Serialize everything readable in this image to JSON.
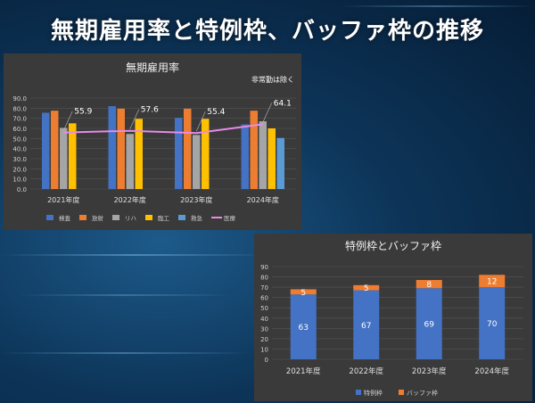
{
  "page_title": "無期雇用率と特例枠、バッファ枠の推移",
  "chart_data": [
    {
      "type": "bar",
      "title": "無期雇用率",
      "note": "非常勤は除く",
      "categories": [
        "2021年度",
        "2022年度",
        "2023年度",
        "2024年度"
      ],
      "ylim": [
        0,
        90
      ],
      "yticks": [
        "0.0",
        "10.0",
        "20.0",
        "30.0",
        "40.0",
        "50.0",
        "60.0",
        "70.0",
        "80.0",
        "90.0"
      ],
      "series": [
        {
          "name": "検査",
          "color": "#4472c4",
          "values": [
            75.5,
            82.0,
            70.5,
            64.0
          ]
        },
        {
          "name": "放射",
          "color": "#ed7d31",
          "values": [
            77.5,
            79.5,
            79.5,
            77.5
          ]
        },
        {
          "name": "リハ",
          "color": "#a5a5a5",
          "values": [
            60.5,
            54.5,
            53.5,
            67.0
          ]
        },
        {
          "name": "臨工",
          "color": "#ffc000",
          "values": [
            65.0,
            69.5,
            69.5,
            60.0
          ]
        },
        {
          "name": "救急",
          "color": "#5b9bd5",
          "values": [
            null,
            null,
            null,
            50.5
          ]
        }
      ],
      "line_series": {
        "name": "医療",
        "color": "#e88ae8",
        "values": [
          55.9,
          57.6,
          55.4,
          64.1
        ],
        "labels": [
          "55.9",
          "57.6",
          "55.4",
          "64.1"
        ]
      }
    },
    {
      "type": "bar",
      "stacked": true,
      "title": "特例枠とバッファ枠",
      "categories": [
        "2021年度",
        "2022年度",
        "2023年度",
        "2024年度"
      ],
      "ylim": [
        0,
        90
      ],
      "yticks": [
        "0",
        "10",
        "20",
        "30",
        "40",
        "50",
        "60",
        "70",
        "80",
        "90"
      ],
      "series": [
        {
          "name": "特例枠",
          "color": "#4472c4",
          "values": [
            63,
            67,
            69,
            70
          ],
          "labels": [
            "63",
            "67",
            "69",
            "70"
          ]
        },
        {
          "name": "バッファ枠",
          "color": "#ed7d31",
          "values": [
            5,
            5,
            8,
            12
          ],
          "labels": [
            "5",
            "5",
            "8",
            "12"
          ]
        }
      ]
    }
  ]
}
